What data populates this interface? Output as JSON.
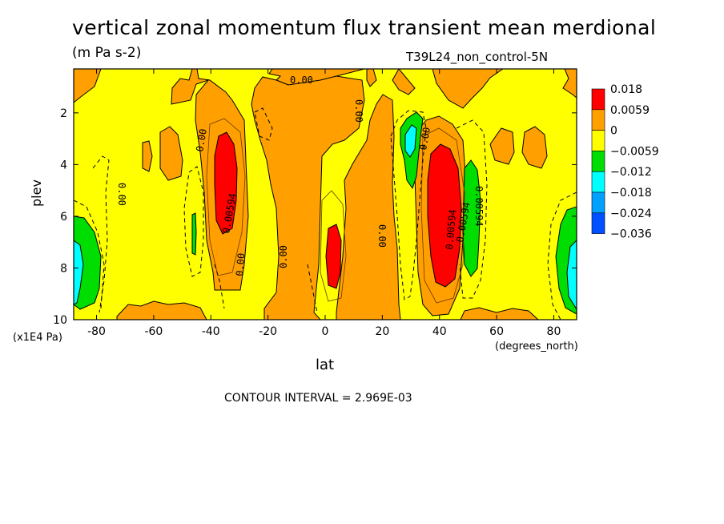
{
  "chart_data": {
    "type": "heatmap",
    "title": "vertical zonal momentum flux transient mean merdional",
    "units": "(m Pa s-2)",
    "run_id": "T39L24_non_control-5N",
    "xlabel": "lat",
    "x_unit": "(degrees_north)",
    "ylabel": "plev",
    "y_unit": "(x1E4 Pa)",
    "xlim": [
      -88,
      88
    ],
    "ylim": [
      10,
      0.3
    ],
    "x_ticks": [
      "-80",
      "-60",
      "-40",
      "-20",
      "0",
      "20",
      "40",
      "60",
      "80"
    ],
    "y_ticks": [
      "2",
      "4",
      "6",
      "8",
      "10"
    ],
    "contour_interval": "CONTOUR INTERVAL = 2.969E-03",
    "legend": {
      "levels": [
        "0.018",
        "0.0059",
        "0",
        "−0.0059",
        "−0.012",
        "−0.018",
        "−0.024",
        "−0.036"
      ],
      "colors": [
        "#ff0000",
        "#ffa000",
        "#ffff00",
        "#00dd00",
        "#00ffff",
        "#00a0ff",
        "#0050ff"
      ]
    },
    "contour_labels": [
      "0.00",
      "0.00",
      "0.00",
      "0.00",
      "0.00",
      "0.00",
      "0.00",
      "0.00",
      "0.00594",
      "0.00594",
      "0.00594",
      "0.00594"
    ]
  }
}
